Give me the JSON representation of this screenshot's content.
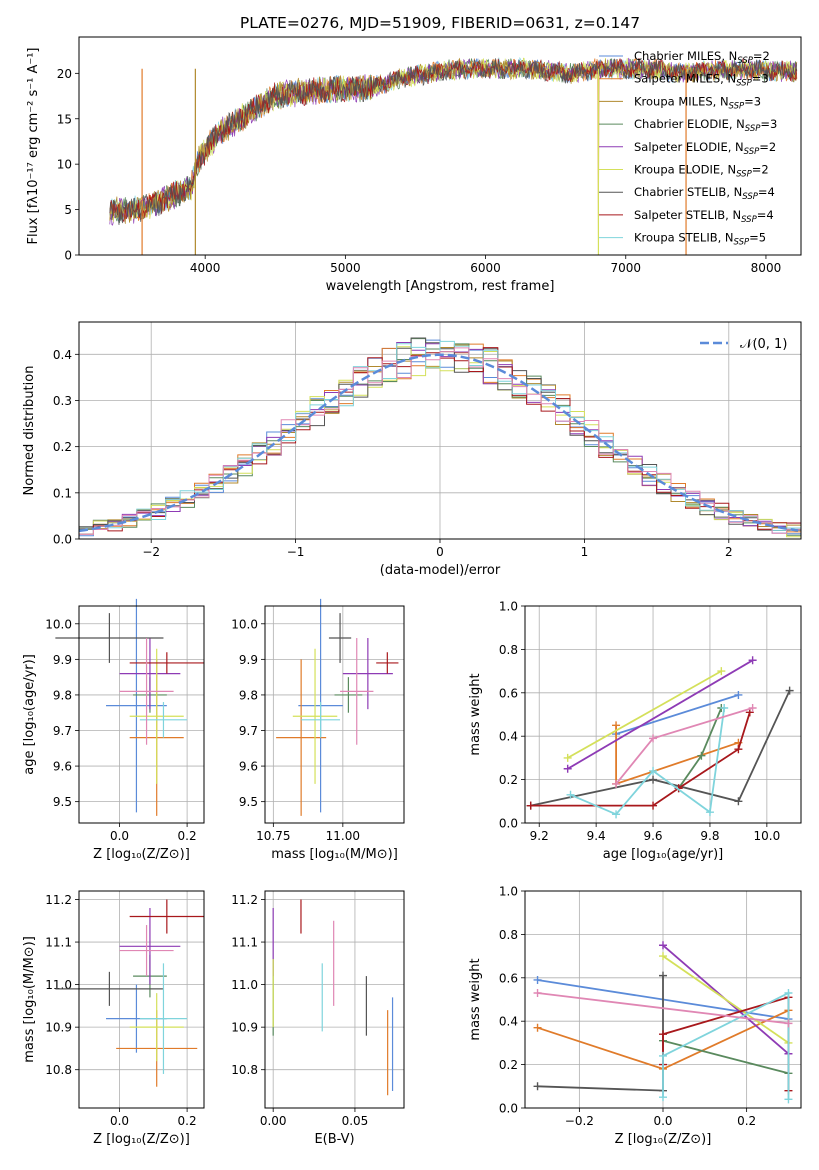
{
  "title": "PLATE=0276, MJD=51909, FIBERID=0631, z=0.147",
  "colors": {
    "chabrier_miles": "#5b8bd9",
    "salpeter_miles": "#e07b2a",
    "kroupa_miles": "#b0892e",
    "chabrier_elodie": "#5a8a5e",
    "salpeter_elodie": "#8e3bb5",
    "kroupa_elodie": "#d4e05a",
    "chabrier_stelib": "#555555",
    "salpeter_stelib": "#a8181c",
    "kroupa_stelib": "#7fd4dc",
    "pink": "#e087b4",
    "normal_curve": "#5b8bd9"
  },
  "chart_data": [
    {
      "id": "spectrum",
      "type": "line",
      "xlabel": "wavelength [Angstrom, rest frame]",
      "ylabel": "Flux [fλ10⁻¹⁷ erg cm⁻² s⁻¹ A⁻¹]",
      "xlim": [
        3100,
        8250
      ],
      "ylim": [
        0,
        24
      ],
      "xticks": [
        4000,
        5000,
        6000,
        7000,
        8000
      ],
      "yticks": [
        0,
        5,
        10,
        15,
        20
      ],
      "legend_position": "top-right",
      "continuum": {
        "x": [
          3320,
          3500,
          3700,
          3900,
          3950,
          4100,
          4300,
          4500,
          4700,
          5000,
          5200,
          5400,
          5600,
          5800,
          6000,
          6300,
          6600,
          6800,
          7000,
          7200,
          7400,
          7600,
          7800,
          8000,
          8200
        ],
        "y": [
          4.8,
          5.0,
          6.0,
          7.5,
          10.5,
          13.5,
          15.5,
          17.5,
          18.0,
          18.3,
          18.5,
          19.5,
          20.0,
          20.5,
          20.5,
          20.5,
          20.0,
          20.5,
          20.5,
          20.5,
          20.0,
          20.3,
          20.5,
          20.3,
          20.2
        ]
      },
      "legend": [
        {
          "label": "Chabrier MILES, N",
          "sub": "SSP",
          "suffix": "=2",
          "color_key": "chabrier_miles"
        },
        {
          "label": "Salpeter MILES, N",
          "sub": "SSP",
          "suffix": "=3",
          "color_key": "salpeter_miles"
        },
        {
          "label": "Kroupa MILES, N",
          "sub": "SSP",
          "suffix": "=3",
          "color_key": "kroupa_miles"
        },
        {
          "label": "Chabrier ELODIE, N",
          "sub": "SSP",
          "suffix": "=3",
          "color_key": "chabrier_elodie"
        },
        {
          "label": "Salpeter ELODIE, N",
          "sub": "SSP",
          "suffix": "=2",
          "color_key": "salpeter_elodie"
        },
        {
          "label": "Kroupa ELODIE, N",
          "sub": "SSP",
          "suffix": "=2",
          "color_key": "kroupa_elodie"
        },
        {
          "label": "Chabrier STELIB, N",
          "sub": "SSP",
          "suffix": "=4",
          "color_key": "chabrier_stelib"
        },
        {
          "label": "Salpeter STELIB, N",
          "sub": "SSP",
          "suffix": "=4",
          "color_key": "salpeter_stelib"
        },
        {
          "label": "Kroupa STELIB, N",
          "sub": "SSP",
          "suffix": "=5",
          "color_key": "kroupa_stelib"
        }
      ]
    },
    {
      "id": "residuals",
      "type": "histogram",
      "xlabel": "(data-model)/error",
      "ylabel": "Normed distribution",
      "xlim": [
        -2.5,
        2.5
      ],
      "ylim": [
        0,
        0.47
      ],
      "xticks": [
        -2,
        -1,
        0,
        1,
        2
      ],
      "yticks": [
        0.0,
        0.1,
        0.2,
        0.3,
        0.4
      ],
      "grid": true,
      "bin_width": 0.1,
      "legend_position": "top-right",
      "legend_label": "𝒩(0, 1)",
      "normal": {
        "mean": 0,
        "sigma": 1
      }
    },
    {
      "id": "age_vs_z",
      "type": "errorbar",
      "xlabel": "Z [log₁₀(Z/Z⊙)]",
      "ylabel": "age  [log₁₀(age/yr)]",
      "xlim": [
        -0.12,
        0.25
      ],
      "ylim": [
        9.44,
        10.05
      ],
      "xticks": [
        0.0,
        0.2
      ],
      "yticks": [
        9.5,
        9.6,
        9.7,
        9.8,
        9.9,
        10.0
      ],
      "grid": true,
      "points": [
        {
          "color_key": "chabrier_miles",
          "x": 0.05,
          "xerr": 0.09,
          "y": 9.77,
          "yerr": 0.3
        },
        {
          "color_key": "salpeter_miles",
          "x": 0.11,
          "xerr": 0.08,
          "y": 9.68,
          "yerr": 0.22
        },
        {
          "color_key": "chabrier_elodie",
          "x": 0.09,
          "xerr": 0.05,
          "y": 9.8,
          "yerr": 0.05
        },
        {
          "color_key": "salpeter_elodie",
          "x": 0.09,
          "xerr": 0.09,
          "y": 9.86,
          "yerr": 0.1
        },
        {
          "color_key": "kroupa_elodie",
          "x": 0.11,
          "xerr": 0.08,
          "y": 9.74,
          "yerr": 0.19
        },
        {
          "color_key": "chabrier_stelib",
          "x": -0.03,
          "xerr": 0.16,
          "y": 9.96,
          "yerr": 0.07
        },
        {
          "color_key": "salpeter_stelib",
          "x": 0.14,
          "xerr": 0.11,
          "y": 9.89,
          "yerr": 0.03
        },
        {
          "color_key": "kroupa_stelib",
          "x": 0.13,
          "xerr": 0.07,
          "y": 9.73,
          "yerr": 0.05
        },
        {
          "color_key": "pink",
          "x": 0.08,
          "xerr": 0.08,
          "y": 9.81,
          "yerr": 0.15
        }
      ]
    },
    {
      "id": "age_vs_mass",
      "type": "errorbar",
      "xlabel": "mass [log₁₀(M/M⊙)]",
      "ylabel": "",
      "xlim": [
        10.72,
        11.22
      ],
      "ylim": [
        9.44,
        10.05
      ],
      "xticks": [
        10.75,
        11.0
      ],
      "yticks": [
        9.5,
        9.6,
        9.7,
        9.8,
        9.9,
        10.0
      ],
      "grid": true,
      "points": [
        {
          "color_key": "chabrier_miles",
          "x": 10.92,
          "xerr": 0.08,
          "y": 9.77,
          "yerr": 0.3
        },
        {
          "color_key": "salpeter_miles",
          "x": 10.85,
          "xerr": 0.09,
          "y": 9.68,
          "yerr": 0.22
        },
        {
          "color_key": "chabrier_elodie",
          "x": 11.02,
          "xerr": 0.05,
          "y": 9.8,
          "yerr": 0.05
        },
        {
          "color_key": "salpeter_elodie",
          "x": 11.09,
          "xerr": 0.09,
          "y": 9.86,
          "yerr": 0.1
        },
        {
          "color_key": "kroupa_elodie",
          "x": 10.9,
          "xerr": 0.08,
          "y": 9.74,
          "yerr": 0.19
        },
        {
          "color_key": "chabrier_stelib",
          "x": 10.99,
          "xerr": 0.04,
          "y": 9.96,
          "yerr": 0.07
        },
        {
          "color_key": "salpeter_stelib",
          "x": 11.16,
          "xerr": 0.04,
          "y": 9.89,
          "yerr": 0.03
        },
        {
          "color_key": "kroupa_stelib",
          "x": 10.92,
          "xerr": 0.07,
          "y": 9.73,
          "yerr": 0.05
        },
        {
          "color_key": "pink",
          "x": 11.05,
          "xerr": 0.06,
          "y": 9.81,
          "yerr": 0.15
        }
      ]
    },
    {
      "id": "weight_vs_age",
      "type": "line",
      "xlabel": "age  [log₁₀(age/yr)]",
      "ylabel": "mass weight",
      "xlim": [
        9.15,
        10.12
      ],
      "ylim": [
        0.0,
        1.0
      ],
      "xticks": [
        9.2,
        9.4,
        9.6,
        9.8,
        10.0
      ],
      "yticks": [
        0.0,
        0.2,
        0.4,
        0.6,
        0.8,
        1.0
      ],
      "grid": true,
      "series": [
        {
          "color_key": "chabrier_miles",
          "x": [
            9.47,
            9.9
          ],
          "y": [
            0.41,
            0.59
          ]
        },
        {
          "color_key": "salpeter_miles",
          "x": [
            9.47,
            9.47,
            9.9
          ],
          "y": [
            0.45,
            0.18,
            0.37
          ]
        },
        {
          "color_key": "chabrier_elodie",
          "x": [
            9.69,
            9.77,
            9.84
          ],
          "y": [
            0.16,
            0.31,
            0.53
          ]
        },
        {
          "color_key": "salpeter_elodie",
          "x": [
            9.3,
            9.95
          ],
          "y": [
            0.25,
            0.75
          ]
        },
        {
          "color_key": "kroupa_elodie",
          "x": [
            9.3,
            9.84
          ],
          "y": [
            0.3,
            0.7
          ]
        },
        {
          "color_key": "chabrier_stelib",
          "x": [
            9.17,
            9.6,
            9.9,
            10.08
          ],
          "y": [
            0.08,
            0.2,
            0.1,
            0.61
          ]
        },
        {
          "color_key": "salpeter_stelib",
          "x": [
            9.17,
            9.6,
            9.69,
            9.9,
            9.94
          ],
          "y": [
            0.08,
            0.08,
            0.16,
            0.34,
            0.51
          ]
        },
        {
          "color_key": "kroupa_stelib",
          "x": [
            9.31,
            9.47,
            9.6,
            9.8,
            9.85
          ],
          "y": [
            0.13,
            0.04,
            0.24,
            0.05,
            0.53
          ]
        },
        {
          "color_key": "pink",
          "x": [
            9.47,
            9.6,
            9.95
          ],
          "y": [
            0.18,
            0.39,
            0.53
          ]
        }
      ]
    },
    {
      "id": "mass_vs_z",
      "type": "errorbar",
      "xlabel": "Z [log₁₀(Z/Z⊙)]",
      "ylabel": "mass [log₁₀(M/M⊙)]",
      "xlim": [
        -0.12,
        0.25
      ],
      "ylim": [
        10.71,
        11.22
      ],
      "xticks": [
        0.0,
        0.2
      ],
      "yticks": [
        10.8,
        10.9,
        11.0,
        11.1,
        11.2
      ],
      "grid": true,
      "points": [
        {
          "color_key": "chabrier_miles",
          "x": 0.05,
          "xerr": 0.09,
          "y": 10.92,
          "yerr": 0.08
        },
        {
          "color_key": "salpeter_miles",
          "x": 0.11,
          "xerr": 0.12,
          "y": 10.85,
          "yerr": 0.09
        },
        {
          "color_key": "chabrier_elodie",
          "x": 0.09,
          "xerr": 0.05,
          "y": 11.02,
          "yerr": 0.05
        },
        {
          "color_key": "salpeter_elodie",
          "x": 0.09,
          "xerr": 0.09,
          "y": 11.09,
          "yerr": 0.09
        },
        {
          "color_key": "kroupa_elodie",
          "x": 0.11,
          "xerr": 0.08,
          "y": 10.9,
          "yerr": 0.08
        },
        {
          "color_key": "chabrier_stelib",
          "x": -0.03,
          "xerr": 0.16,
          "y": 10.99,
          "yerr": 0.04
        },
        {
          "color_key": "salpeter_stelib",
          "x": 0.14,
          "xerr": 0.11,
          "y": 11.16,
          "yerr": 0.04
        },
        {
          "color_key": "kroupa_stelib",
          "x": 0.13,
          "xerr": 0.07,
          "y": 10.92,
          "yerr": 0.13
        },
        {
          "color_key": "pink",
          "x": 0.08,
          "xerr": 0.08,
          "y": 11.08,
          "yerr": 0.06
        }
      ]
    },
    {
      "id": "mass_vs_ebv",
      "type": "errorbar",
      "xlabel": "E(B-V)",
      "ylabel": "",
      "xlim": [
        -0.005,
        0.08
      ],
      "ylim": [
        10.71,
        11.22
      ],
      "xticks": [
        0.0,
        0.05
      ],
      "yticks": [
        10.8,
        10.9,
        11.0,
        11.1,
        11.2
      ],
      "grid": true,
      "points": [
        {
          "color_key": "chabrier_miles",
          "x": 0.073,
          "xerr": 0,
          "y": 10.86,
          "yerr": 0.11
        },
        {
          "color_key": "salpeter_miles",
          "x": 0.07,
          "xerr": 0,
          "y": 10.84,
          "yerr": 0.1
        },
        {
          "color_key": "chabrier_elodie",
          "x": 0.0,
          "xerr": 0,
          "y": 10.97,
          "yerr": 0.09
        },
        {
          "color_key": "salpeter_elodie",
          "x": 0.0,
          "xerr": 0,
          "y": 11.1,
          "yerr": 0.08
        },
        {
          "color_key": "kroupa_elodie",
          "x": 0.0,
          "xerr": 0,
          "y": 10.98,
          "yerr": 0.08
        },
        {
          "color_key": "chabrier_stelib",
          "x": 0.057,
          "xerr": 0,
          "y": 10.95,
          "yerr": 0.07
        },
        {
          "color_key": "salpeter_stelib",
          "x": 0.017,
          "xerr": 0,
          "y": 11.16,
          "yerr": 0.04
        },
        {
          "color_key": "kroupa_stelib",
          "x": 0.03,
          "xerr": 0,
          "y": 10.97,
          "yerr": 0.08
        },
        {
          "color_key": "pink",
          "x": 0.037,
          "xerr": 0,
          "y": 11.05,
          "yerr": 0.1
        }
      ]
    },
    {
      "id": "weight_vs_z",
      "type": "line",
      "xlabel": "Z [log₁₀(Z/Z⊙)]",
      "ylabel": "mass weight",
      "xlim": [
        -0.33,
        0.33
      ],
      "ylim": [
        0.0,
        1.0
      ],
      "xticks": [
        -0.2,
        0.0,
        0.2
      ],
      "yticks": [
        0.0,
        0.2,
        0.4,
        0.6,
        0.8,
        1.0
      ],
      "grid": true,
      "series": [
        {
          "color_key": "chabrier_miles",
          "x": [
            -0.3,
            0.3
          ],
          "y": [
            0.59,
            0.41
          ]
        },
        {
          "color_key": "salpeter_miles",
          "x": [
            -0.3,
            0.0,
            0.3
          ],
          "y": [
            0.37,
            0.18,
            0.45
          ]
        },
        {
          "color_key": "chabrier_elodie",
          "x": [
            0.0,
            0.3
          ],
          "y": [
            0.31,
            0.16
          ]
        },
        {
          "color_key": "salpeter_elodie",
          "x": [
            0.0,
            0.3
          ],
          "y": [
            0.75,
            0.25
          ]
        },
        {
          "color_key": "kroupa_elodie",
          "x": [
            0.0,
            0.3
          ],
          "y": [
            0.7,
            0.3
          ]
        },
        {
          "color_key": "chabrier_stelib",
          "x": [
            -0.3,
            0.0,
            0.0
          ],
          "y": [
            0.1,
            0.08,
            0.61
          ]
        },
        {
          "color_key": "salpeter_stelib",
          "x": [
            0.0,
            0.0,
            0.3,
            0.3
          ],
          "y": [
            0.2,
            0.34,
            0.51,
            0.08
          ]
        },
        {
          "color_key": "kroupa_stelib",
          "x": [
            0.0,
            0.0,
            0.3,
            0.3
          ],
          "y": [
            0.05,
            0.24,
            0.53,
            0.04
          ]
        },
        {
          "color_key": "pink",
          "x": [
            -0.3,
            0.3
          ],
          "y": [
            0.53,
            0.39
          ]
        }
      ]
    }
  ]
}
